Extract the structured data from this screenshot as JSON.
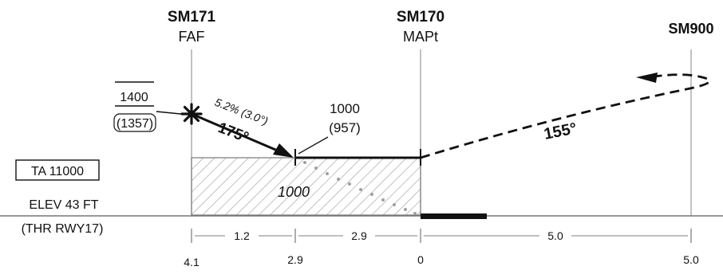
{
  "fixes": {
    "faf": {
      "id": "SM171",
      "role": "FAF"
    },
    "mapt": {
      "id": "SM170",
      "role": "MAPt"
    },
    "missed": {
      "id": "SM900"
    }
  },
  "faf_altitude": {
    "minimum": "1400",
    "height": "(1357)"
  },
  "descent": {
    "gradient_label": "5.2% (3.0°)",
    "course": "175°"
  },
  "step_down": {
    "altitude": "1000",
    "height": "(957)"
  },
  "missed_approach": {
    "course": "155°"
  },
  "transition_altitude": "TA 11000",
  "obstacle_area_label": "1000",
  "aerodrome": {
    "elevation": "ELEV 43 FT",
    "threshold": "(THR RWY17)"
  },
  "segment_distances": [
    "1.2",
    "2.9",
    "5.0"
  ],
  "distance_scale": [
    "4.1",
    "2.9",
    "0",
    "5.0"
  ],
  "colors": {
    "ink": "#111111",
    "hatch": "#9a9a9a",
    "dots": "#a0a0a0",
    "guide": "#999999"
  }
}
